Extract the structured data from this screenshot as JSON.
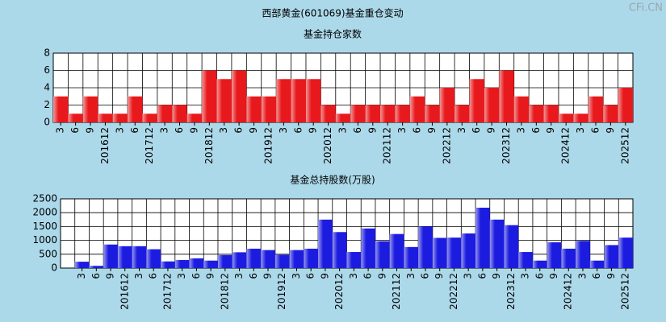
{
  "title": "西部黄金(601069)基金重仓变动",
  "watermark": "CFi.CN",
  "chart_data": [
    {
      "type": "bar",
      "title": "基金持仓家数",
      "color": "#e8191c",
      "grid": true,
      "categories": [
        "3",
        "6",
        "9",
        "201612",
        "3",
        "6",
        "201712",
        "3",
        "6",
        "9",
        "201812",
        "3",
        "6",
        "9",
        "201912",
        "3",
        "6",
        "9",
        "202012",
        "3",
        "6",
        "9",
        "202112",
        "3",
        "6",
        "9",
        "202212",
        "3",
        "6",
        "9",
        "202312",
        "3",
        "6",
        "9",
        "202412",
        "3",
        "6",
        "9",
        "202512"
      ],
      "values": [
        3,
        1,
        3,
        1,
        1,
        3,
        1,
        2,
        2,
        1,
        6,
        5,
        6,
        3,
        3,
        5,
        5,
        5,
        2,
        1,
        2,
        2,
        2,
        2,
        3,
        2,
        4,
        2,
        5,
        4,
        6,
        3,
        2,
        2,
        1,
        1,
        3,
        2,
        4
      ],
      "ylim": [
        0,
        8
      ],
      "yticks": [
        0,
        2,
        4,
        6,
        8
      ]
    },
    {
      "type": "bar",
      "title": "基金总持股数(万股)",
      "color": "#1c1ce0",
      "grid": true,
      "categories": [
        "3",
        "6",
        "9",
        "201612",
        "3",
        "6",
        "201712",
        "3",
        "6",
        "9",
        "201812",
        "3",
        "6",
        "9",
        "201912",
        "3",
        "6",
        "9",
        "202012",
        "3",
        "6",
        "9",
        "202112",
        "3",
        "6",
        "9",
        "202212",
        "3",
        "6",
        "9",
        "202312",
        "3",
        "6",
        "9",
        "202412",
        "3",
        "6",
        "9",
        "202512"
      ],
      "values": [
        230,
        80,
        850,
        790,
        790,
        680,
        240,
        290,
        350,
        270,
        470,
        570,
        700,
        650,
        480,
        650,
        700,
        1750,
        1300,
        580,
        1430,
        970,
        1230,
        760,
        1500,
        1090,
        1100,
        1250,
        2180,
        1750,
        1550,
        580,
        270,
        930,
        700,
        980,
        270,
        830,
        1100
      ],
      "ylim": [
        0,
        2500
      ],
      "yticks": [
        0,
        500,
        1000,
        1500,
        2000,
        2500
      ]
    }
  ]
}
